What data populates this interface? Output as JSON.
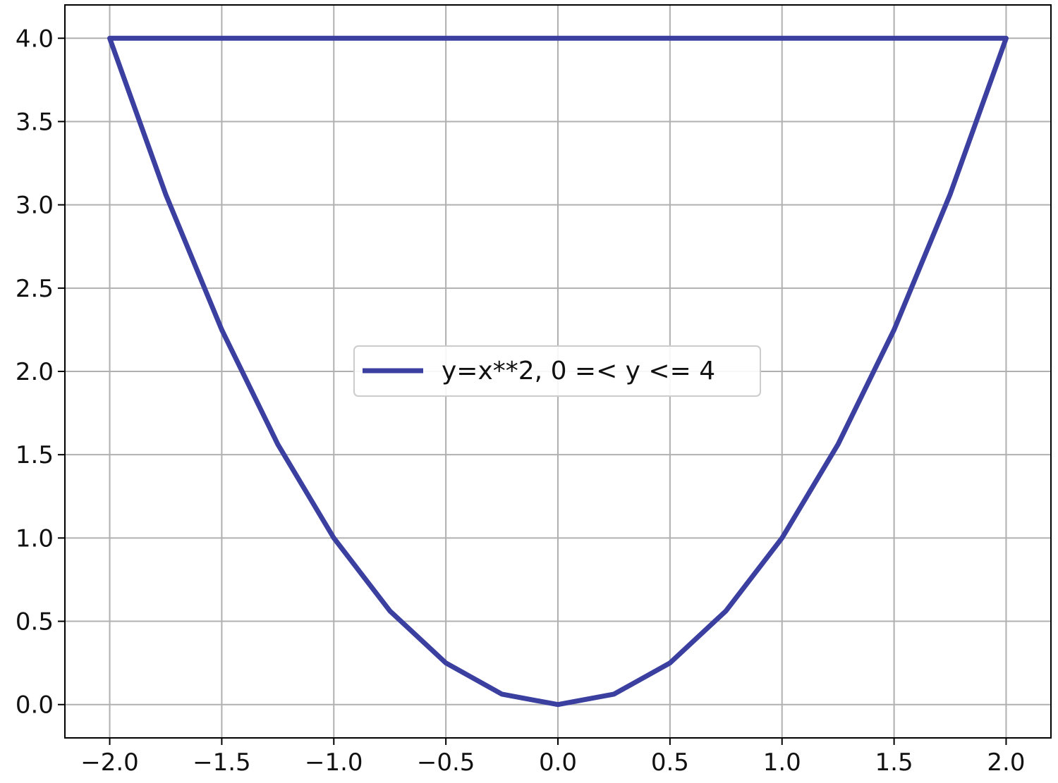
{
  "chart_data": {
    "type": "line",
    "title": "",
    "xlabel": "",
    "ylabel": "",
    "xlim": [
      -2.2,
      2.2
    ],
    "ylim": [
      -0.2,
      4.2
    ],
    "x_ticks": [
      -2.0,
      -1.5,
      -1.0,
      -0.5,
      0.0,
      0.5,
      1.0,
      1.5,
      2.0
    ],
    "x_tick_labels": [
      "−2.0",
      "−1.5",
      "−1.0",
      "−0.5",
      "0.0",
      "0.5",
      "1.0",
      "1.5",
      "2.0"
    ],
    "y_ticks": [
      0.0,
      0.5,
      1.0,
      1.5,
      2.0,
      2.5,
      3.0,
      3.5,
      4.0
    ],
    "y_tick_labels": [
      "0.0",
      "0.5",
      "1.0",
      "1.5",
      "2.0",
      "2.5",
      "3.0",
      "3.5",
      "4.0"
    ],
    "grid": true,
    "legend_position": "center",
    "series": [
      {
        "name": "y=x**2,  0 =< y <= 4",
        "color": "#3a3fa0",
        "x": [
          -2.0,
          -1.75,
          -1.5,
          -1.25,
          -1.0,
          -0.75,
          -0.5,
          -0.25,
          0.0,
          0.25,
          0.5,
          0.75,
          1.0,
          1.25,
          1.5,
          1.75,
          2.0,
          -2.0
        ],
        "y": [
          4.0,
          3.0625,
          2.25,
          1.5625,
          1.0,
          0.5625,
          0.25,
          0.0625,
          0.0,
          0.0625,
          0.25,
          0.5625,
          1.0,
          1.5625,
          2.25,
          3.0625,
          4.0,
          4.0
        ]
      }
    ]
  }
}
